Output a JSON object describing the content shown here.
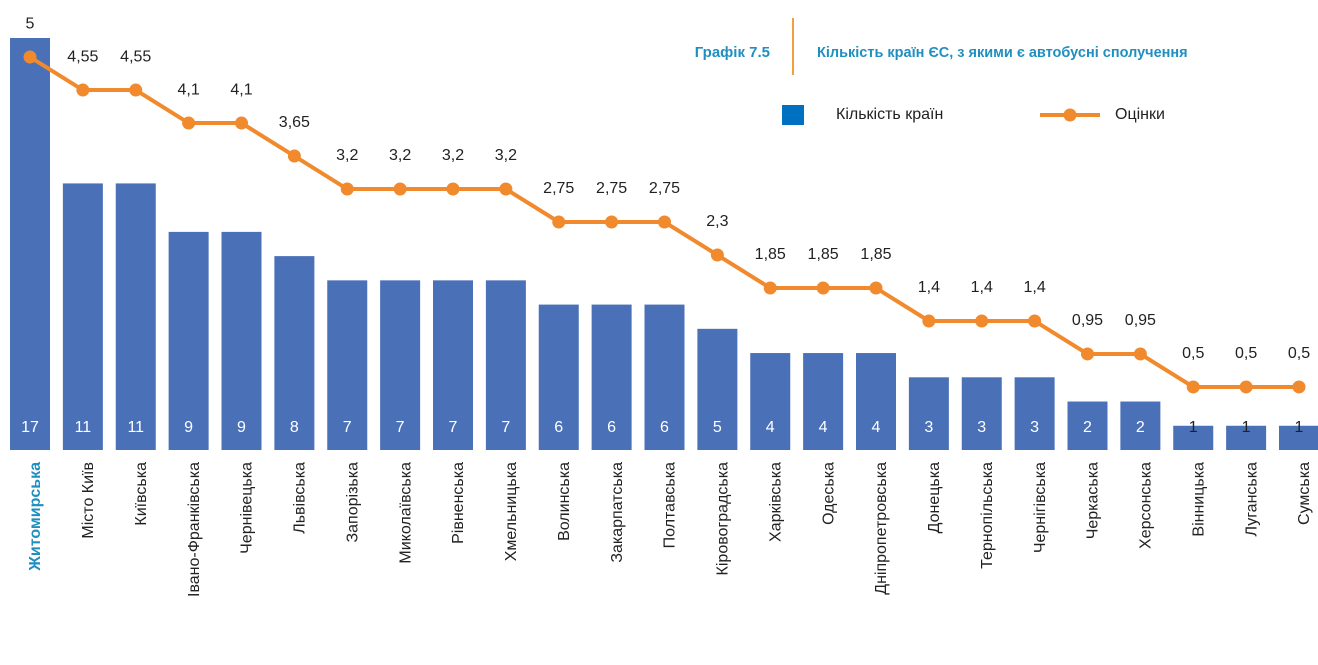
{
  "chart_data": {
    "type": "bar_line",
    "title": "Кількість країн ЄС, з якими є автобусні сполучення",
    "figure_label": "Графік 7.5",
    "categories": [
      "Житомирська",
      "Місто Київ",
      "Київська",
      "Івано-Франківська",
      "Чернівецька",
      "Львівська",
      "Запорізька",
      "Миколаївська",
      "Рівненська",
      "Хмельницька",
      "Волинська",
      "Закарпатська",
      "Полтавська",
      "Кіровоградська",
      "Харківська",
      "Одеська",
      "Дніпропетровська",
      "Донецька",
      "Тернопільська",
      "Чернігівська",
      "Черкаська",
      "Херсонська",
      "Вінницька",
      "Луганська",
      "Сумська"
    ],
    "highlight_index": 0,
    "series": [
      {
        "name": "Кількість країн",
        "type": "bar",
        "color": "#4a70b8",
        "values": [
          17,
          11,
          11,
          9,
          9,
          8,
          7,
          7,
          7,
          7,
          6,
          6,
          6,
          5,
          4,
          4,
          4,
          3,
          3,
          3,
          2,
          2,
          1,
          1,
          1
        ]
      },
      {
        "name": "Оцінки",
        "type": "line",
        "axis": "y2",
        "color": "#f08a2c",
        "values": [
          5,
          4.55,
          4.55,
          4.1,
          4.1,
          3.65,
          3.2,
          3.2,
          3.2,
          3.2,
          2.75,
          2.75,
          2.75,
          2.3,
          1.85,
          1.85,
          1.85,
          1.4,
          1.4,
          1.4,
          0.95,
          0.95,
          0.5,
          0.5,
          0.5
        ],
        "value_labels": [
          "5",
          "4,55",
          "4,55",
          "4,1",
          "4,1",
          "3,65",
          "3,2",
          "3,2",
          "3,2",
          "3,2",
          "2,75",
          "2,75",
          "2,75",
          "2,3",
          "1,85",
          "1,85",
          "1,85",
          "1,4",
          "1,4",
          "1,4",
          "0,95",
          "0,95",
          "0,5",
          "0,5",
          "0,5"
        ]
      }
    ],
    "ylim": [
      0,
      17
    ],
    "y2lim": [
      -0.36,
      5.26
    ],
    "legend": "top-right"
  }
}
